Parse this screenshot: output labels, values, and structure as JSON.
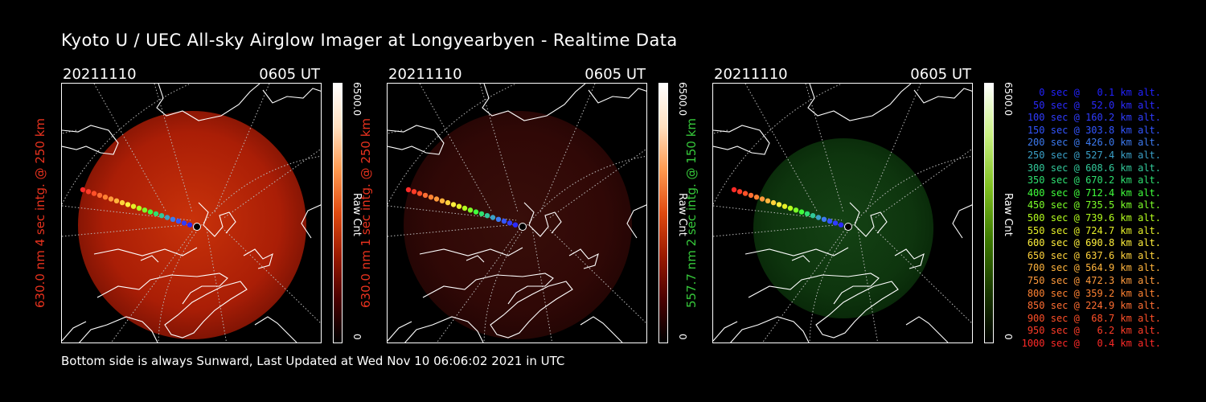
{
  "title": "Kyoto U / UEC All-sky Airglow Imager at Longyearbyen - Realtime Data",
  "footer": "Bottom side is always Sunward, Last Updated at Wed Nov 10 06:06:02 2021 in UTC",
  "panels": [
    {
      "date": "20211110",
      "time": "0605 UT",
      "ylabel": "630.0 nm 4 sec intg. @ 250 km",
      "ylabel_color": "#e8321e",
      "cbar_max": "6500.0",
      "cbar_unit": "Raw Cnt",
      "cbar_min": "0",
      "colormap": "red",
      "brightness": 1.0
    },
    {
      "date": "20211110",
      "time": "0605 UT",
      "ylabel": "630.0 nm 1 sec intg. @ 250 km",
      "ylabel_color": "#e8321e",
      "cbar_max": "6500.0",
      "cbar_unit": "Raw Cnt",
      "cbar_min": "0",
      "colormap": "red",
      "brightness": 0.28
    },
    {
      "date": "20211110",
      "time": "0605 UT",
      "ylabel": "557.7 nm 2 sec intg. @ 150 km",
      "ylabel_color": "#36c83a",
      "cbar_max": "6500.0",
      "cbar_unit": "Raw Cnt",
      "cbar_min": "0",
      "colormap": "green",
      "brightness": 0.55
    }
  ],
  "legend": [
    {
      "text": "0 sec @   0.1 km alt.",
      "color": "#2222ff"
    },
    {
      "text": "50 sec @  52.0 km alt.",
      "color": "#2a2aff"
    },
    {
      "text": "100 sec @ 160.2 km alt.",
      "color": "#2f3cff"
    },
    {
      "text": "150 sec @ 303.8 km alt.",
      "color": "#3255ff"
    },
    {
      "text": "200 sec @ 426.0 km alt.",
      "color": "#3c7af0"
    },
    {
      "text": "250 sec @ 527.4 km alt.",
      "color": "#3aa0c8"
    },
    {
      "text": "300 sec @ 608.6 km alt.",
      "color": "#32c89a"
    },
    {
      "text": "350 sec @ 670.2 km alt.",
      "color": "#2ee070"
    },
    {
      "text": "400 sec @ 712.4 km alt.",
      "color": "#40ff3c"
    },
    {
      "text": "450 sec @ 735.5 km alt.",
      "color": "#7cff28"
    },
    {
      "text": "500 sec @ 739.6 km alt.",
      "color": "#b4ff1e"
    },
    {
      "text": "550 sec @ 724.7 km alt.",
      "color": "#e6f028"
    },
    {
      "text": "600 sec @ 690.8 km alt.",
      "color": "#fff03c"
    },
    {
      "text": "650 sec @ 637.6 km alt.",
      "color": "#ffd23c"
    },
    {
      "text": "700 sec @ 564.9 km alt.",
      "color": "#ffb43c"
    },
    {
      "text": "750 sec @ 472.3 km alt.",
      "color": "#ff9a3c"
    },
    {
      "text": "800 sec @ 359.2 km alt.",
      "color": "#ff8232"
    },
    {
      "text": "850 sec @ 224.9 km alt.",
      "color": "#ff6e32"
    },
    {
      "text": "900 sec @  68.7 km alt.",
      "color": "#ff5028"
    },
    {
      "text": "950 sec @   6.2 km alt.",
      "color": "#ff3c28"
    },
    {
      "text": "1000 sec @   0.4 km alt.",
      "color": "#ff2a28"
    }
  ]
}
